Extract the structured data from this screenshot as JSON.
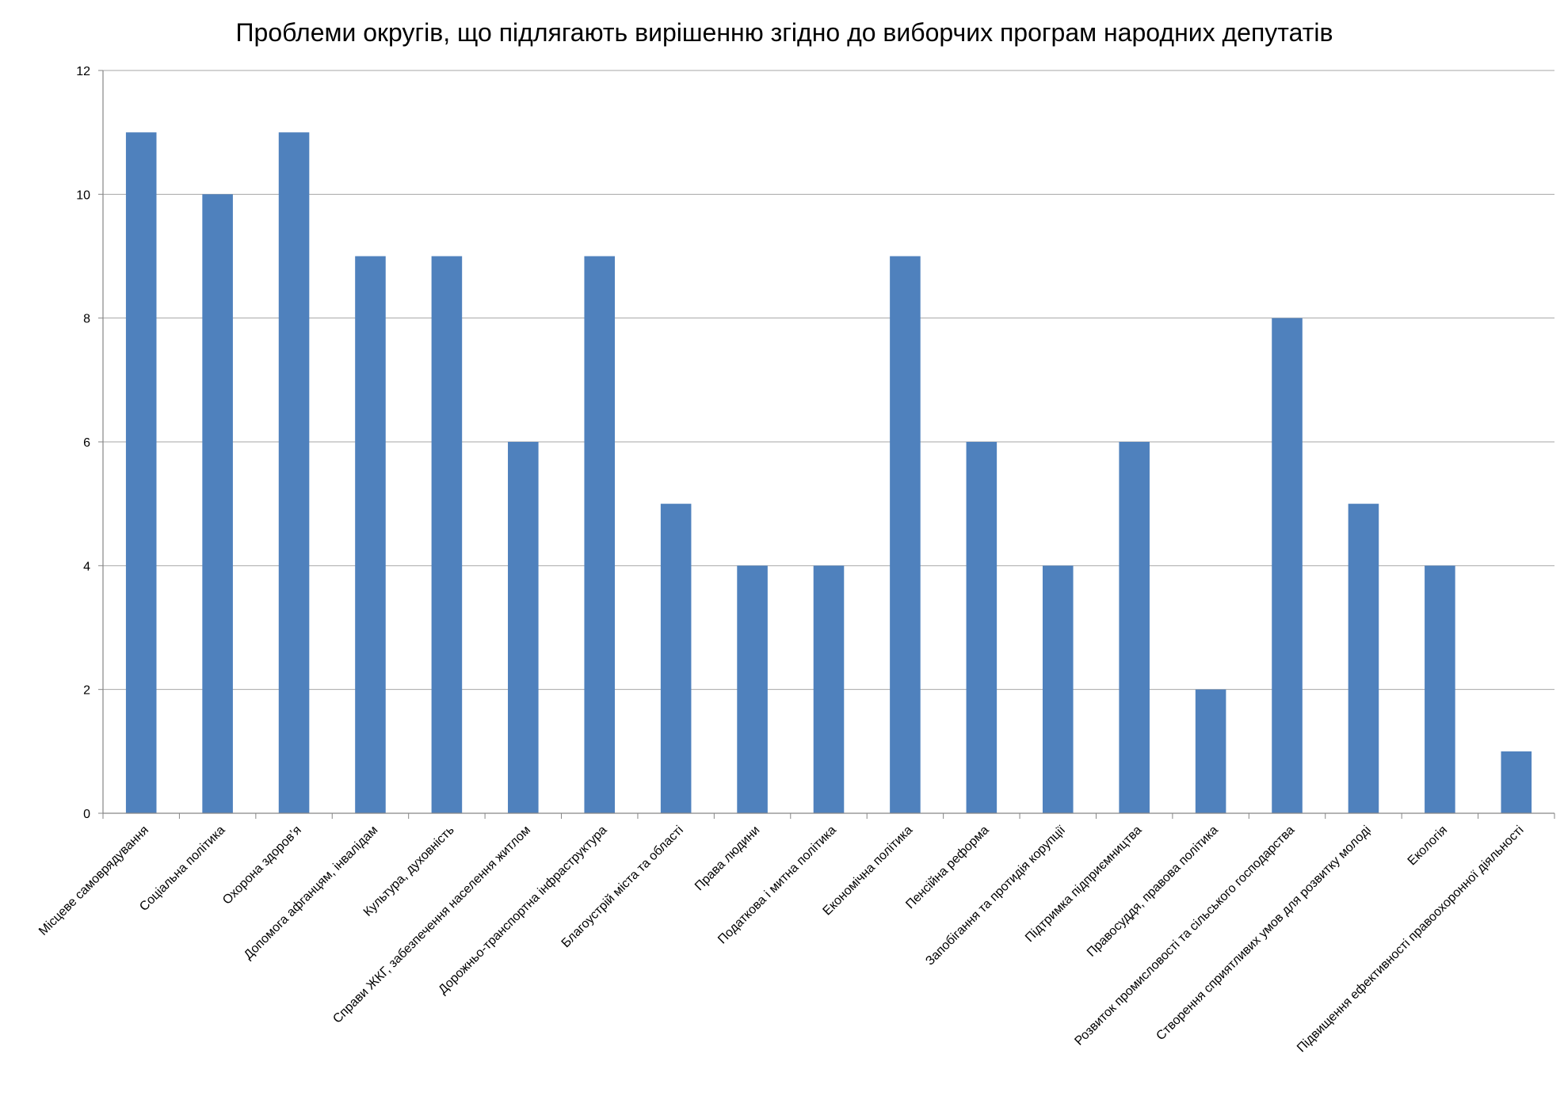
{
  "chart_data": {
    "type": "bar",
    "title": "Проблеми округів, що підлягають вирішенню згідно до виборчих програм народних депутатів",
    "xlabel": "",
    "ylabel": "",
    "ylim": [
      0,
      12
    ],
    "yticks": [
      0,
      2,
      4,
      6,
      8,
      10,
      12
    ],
    "grid": true,
    "legend": "none",
    "bar_color": "#4F81BD",
    "grid_color": "#A6A6A6",
    "axis_color": "#868686",
    "categories": [
      "Місцеве самоврядування",
      "Соціальна політика",
      "Охорона здоров’я",
      "Допомога афганцям, інвалідам",
      "Культура, духовність",
      "Справи ЖКГ, забезпечення населення житлом",
      "Дорожньо-транспортна інфраструктура",
      "Благоустрій міста та області",
      "Права людини",
      "Податкова і митна політика",
      "Економічна політика",
      "Пенсійна реформа",
      "Запобігання та протидія корупції",
      "Підтримка підприємництва",
      "Правосуддя, правова політика",
      "Розвиток промисловості та сільського господарства",
      "Створення сприятливих умов для розвитку молоді",
      "Екологія",
      "Підвищення ефективності правоохоронної діяльності"
    ],
    "values": [
      11,
      10,
      11,
      9,
      9,
      6,
      9,
      5,
      4,
      4,
      9,
      6,
      4,
      6,
      2,
      8,
      5,
      4,
      1
    ]
  }
}
